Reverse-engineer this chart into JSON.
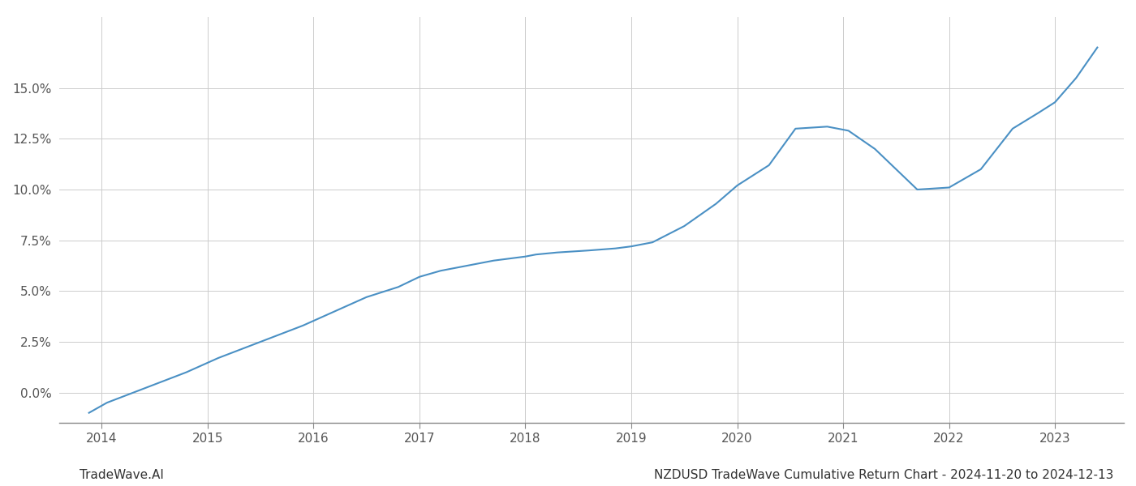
{
  "title": "NZDUSD TradeWave Cumulative Return Chart - 2024-11-20 to 2024-12-13",
  "watermark": "TradeWave.AI",
  "x_values": [
    2013.88,
    2014.05,
    2014.4,
    2014.8,
    2015.1,
    2015.5,
    2015.9,
    2016.2,
    2016.5,
    2016.8,
    2017.0,
    2017.2,
    2017.5,
    2017.7,
    2017.85,
    2018.0,
    2018.1,
    2018.3,
    2018.6,
    2018.85,
    2019.0,
    2019.2,
    2019.5,
    2019.8,
    2020.0,
    2020.15,
    2020.3,
    2020.55,
    2020.85,
    2021.05,
    2021.3,
    2021.5,
    2021.7,
    2022.0,
    2022.3,
    2022.6,
    2022.85,
    2023.0,
    2023.2,
    2023.4
  ],
  "y_values": [
    -0.01,
    -0.005,
    0.002,
    0.01,
    0.017,
    0.025,
    0.033,
    0.04,
    0.047,
    0.052,
    0.057,
    0.06,
    0.063,
    0.065,
    0.066,
    0.067,
    0.068,
    0.069,
    0.07,
    0.071,
    0.072,
    0.074,
    0.082,
    0.093,
    0.102,
    0.107,
    0.112,
    0.13,
    0.131,
    0.129,
    0.12,
    0.11,
    0.1,
    0.101,
    0.11,
    0.13,
    0.138,
    0.143,
    0.155,
    0.17
  ],
  "line_color": "#4a90c4",
  "line_width": 1.5,
  "background_color": "#ffffff",
  "grid_color": "#cccccc",
  "x_tick_labels": [
    "2014",
    "2015",
    "2016",
    "2017",
    "2018",
    "2019",
    "2020",
    "2021",
    "2022",
    "2023"
  ],
  "x_tick_positions": [
    2014,
    2015,
    2016,
    2017,
    2018,
    2019,
    2020,
    2021,
    2022,
    2023
  ],
  "ylim": [
    -0.015,
    0.185
  ],
  "xlim": [
    2013.6,
    2023.65
  ],
  "y_ticks": [
    0.0,
    0.025,
    0.05,
    0.075,
    0.1,
    0.125,
    0.15
  ],
  "y_tick_labels": [
    "0.0%",
    "2.5%",
    "5.0%",
    "7.5%",
    "10.0%",
    "12.5%",
    "15.0%"
  ],
  "title_fontsize": 11,
  "watermark_fontsize": 11,
  "tick_fontsize": 11,
  "spine_color": "#888888",
  "tick_color": "#555555"
}
